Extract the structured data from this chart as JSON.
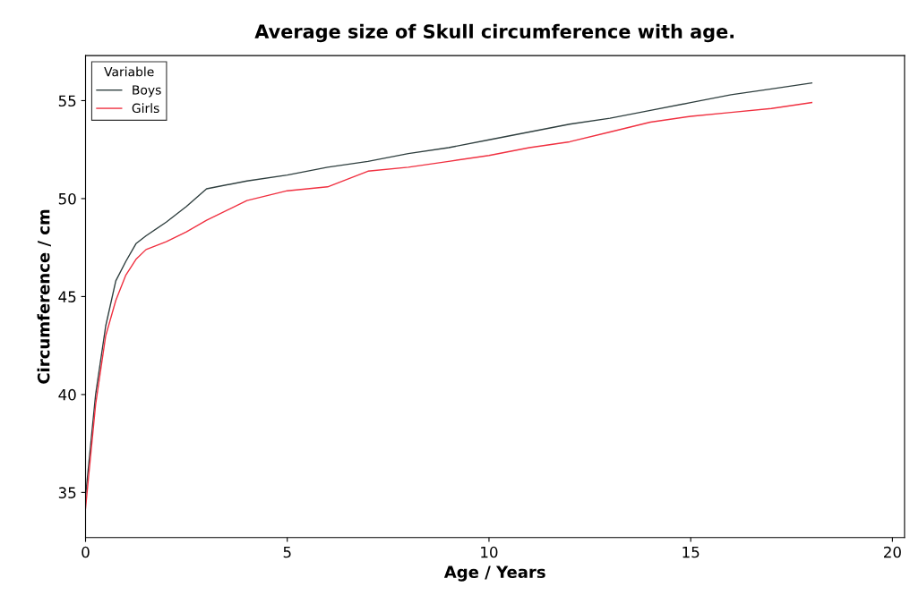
{
  "chart_data": {
    "type": "line",
    "title": "Average size of Skull circumference with age.",
    "xlabel": "Age / Years",
    "ylabel": "Circumference / cm",
    "legend_title": "Variable",
    "legend": "top left",
    "grid": false,
    "marker": "none",
    "line_style": "solid",
    "xlim": [
      0,
      20.3
    ],
    "xticks": [
      0,
      5,
      10,
      15,
      20
    ],
    "ylim": [
      32.7,
      57.3
    ],
    "yticks": [
      35,
      40,
      45,
      50,
      55
    ],
    "x": [
      0,
      0.25,
      0.5,
      0.75,
      1,
      1.25,
      1.5,
      2,
      2.5,
      3,
      4,
      5,
      6,
      7,
      8,
      9,
      10,
      11,
      12,
      13,
      14,
      15,
      16,
      17,
      18
    ],
    "series": [
      {
        "name": "Boys",
        "color": "#2f3f3f",
        "values": [
          34.8,
          40,
          43.5,
          45.8,
          46.8,
          47.7,
          48.1,
          48.8,
          49.6,
          50.5,
          50.9,
          51.2,
          51.6,
          51.9,
          52.3,
          52.6,
          53.0,
          53.4,
          53.8,
          54.1,
          54.5,
          54.9,
          55.3,
          55.6,
          55.9
        ]
      },
      {
        "name": "Girls",
        "color": "#f03040",
        "values": [
          34.2,
          39.5,
          43,
          44.8,
          46.1,
          46.9,
          47.4,
          47.8,
          48.3,
          48.9,
          49.9,
          50.4,
          50.6,
          51.4,
          51.6,
          51.9,
          52.2,
          52.6,
          52.9,
          53.4,
          53.9,
          54.2,
          54.4,
          54.6,
          54.9
        ]
      }
    ]
  }
}
